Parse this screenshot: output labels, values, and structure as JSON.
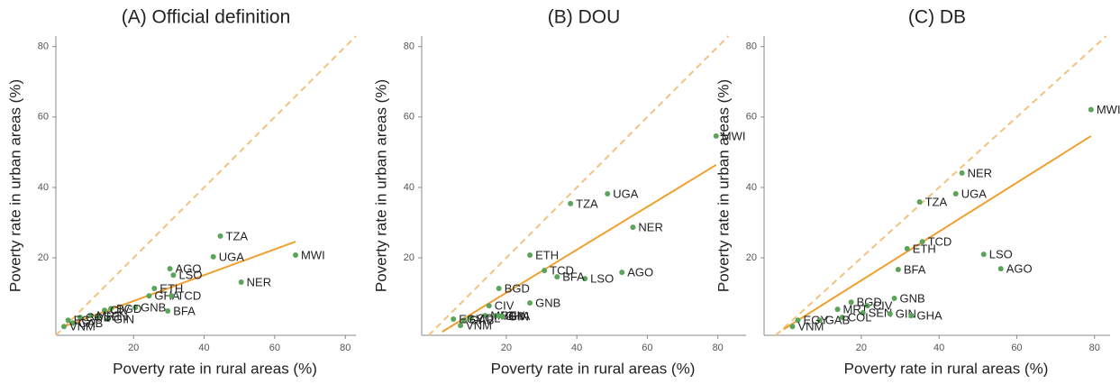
{
  "chart_data": [
    {
      "type": "scatter",
      "title": "(A) Official definition",
      "x_label": "Poverty rate in rural areas (%)",
      "y_label": "Poverty rate in urban areas (%)",
      "labels": [
        "MWI",
        "NER",
        "TZA",
        "UGA",
        "AGO",
        "LSO",
        "ETH",
        "GHA",
        "TCD",
        "GNB",
        "BFA",
        "BGD",
        "CIV",
        "GIN",
        "SEN",
        "MRT",
        "COL",
        "GAB",
        "EGY",
        "VNM"
      ],
      "x": [
        65.9,
        50.5,
        44.6,
        42.6,
        30.3,
        31.3,
        25.9,
        24.4,
        30.8,
        20.5,
        29.7,
        13.6,
        11.8,
        12.8,
        10,
        8,
        4.9,
        2.8,
        1.5,
        0.3
      ],
      "values": [
        20.8,
        13.1,
        26.2,
        20.3,
        16.9,
        15.1,
        11.3,
        9.2,
        9.2,
        5.9,
        4.9,
        5.6,
        5.1,
        2.6,
        3.3,
        3.6,
        3.1,
        1.5,
        2.3,
        0.5
      ],
      "color": "#5aa55a",
      "fit": {
        "x": [
          0.3,
          65.9
        ],
        "y": [
          0.5,
          24.6
        ],
        "color": "#f0a030"
      },
      "diagonal": true,
      "diagonal_color": "#f5c080",
      "xlim": [
        -2,
        83
      ],
      "ylim": [
        -2,
        83
      ],
      "xticks": [
        20,
        40,
        60,
        80
      ],
      "yticks": [
        20,
        40,
        60,
        80
      ]
    },
    {
      "type": "scatter",
      "title": "(B) DOU",
      "x_label": "Poverty rate in rural areas (%)",
      "y_label": "Poverty rate in urban areas (%)",
      "labels": [
        "MWI",
        "NER",
        "UGA",
        "TZA",
        "AGO",
        "LSO",
        "BFA",
        "TCD",
        "ETH",
        "BGD",
        "GNB",
        "CIV",
        "MRT",
        "SEN",
        "GIN",
        "GHA",
        "COL",
        "GAB",
        "EGY",
        "VNM"
      ],
      "x": [
        79.5,
        55.9,
        48.7,
        38.2,
        52.8,
        42.3,
        34.4,
        30.8,
        26.7,
        17.9,
        26.7,
        15.1,
        14,
        17,
        19,
        18,
        10,
        8,
        5,
        7
      ],
      "values": [
        54.6,
        28.7,
        38.2,
        35.4,
        15.9,
        14.1,
        14.6,
        16.4,
        20.8,
        11.3,
        7.2,
        6.4,
        3.6,
        3.6,
        3.3,
        3.5,
        2.8,
        2.3,
        2.6,
        0.8
      ],
      "color": "#5aa55a",
      "fit": {
        "x": [
          1.8,
          79.5
        ],
        "y": [
          -1,
          46.4
        ],
        "color": "#f0a030"
      },
      "diagonal": true,
      "diagonal_color": "#f5c080",
      "xlim": [
        -4,
        88
      ],
      "ylim": [
        -2,
        83
      ],
      "xticks": [
        20,
        40,
        60,
        80
      ],
      "yticks": [
        20,
        40,
        60,
        80
      ]
    },
    {
      "type": "scatter",
      "title": "(C) DB",
      "x_label": "Poverty rate in rural areas (%)",
      "y_label": "Poverty rate in urban areas (%)",
      "labels": [
        "MWI",
        "NER",
        "UGA",
        "TZA",
        "TCD",
        "ETH",
        "BFA",
        "LSO",
        "AGO",
        "GNB",
        "BGD",
        "CIV",
        "MRT",
        "SEN",
        "GIN",
        "GHA",
        "COL",
        "GAB",
        "EGY",
        "VNM"
      ],
      "x": [
        79.1,
        45.9,
        44.3,
        35,
        35.7,
        31.8,
        29.5,
        51.5,
        55.9,
        28.5,
        17.4,
        21.6,
        13.9,
        20.4,
        27.4,
        32.9,
        15.1,
        9.3,
        3.7,
        2.3
      ],
      "values": [
        62.1,
        44.1,
        38.2,
        35.9,
        24.6,
        22.6,
        16.7,
        21,
        16.9,
        8.5,
        7.4,
        6.4,
        5.4,
        4.4,
        4.1,
        3.6,
        3.1,
        2.3,
        2.3,
        0.5
      ],
      "color": "#5aa55a",
      "fit": {
        "x": [
          0,
          79.1
        ],
        "y": [
          -0.3,
          54.6
        ],
        "color": "#f0a030"
      },
      "diagonal": true,
      "diagonal_color": "#f5c080",
      "xlim": [
        -5,
        84
      ],
      "ylim": [
        -2,
        83
      ],
      "xticks": [
        20,
        40,
        60,
        80
      ],
      "yticks": [
        20,
        40,
        60,
        80
      ]
    }
  ]
}
